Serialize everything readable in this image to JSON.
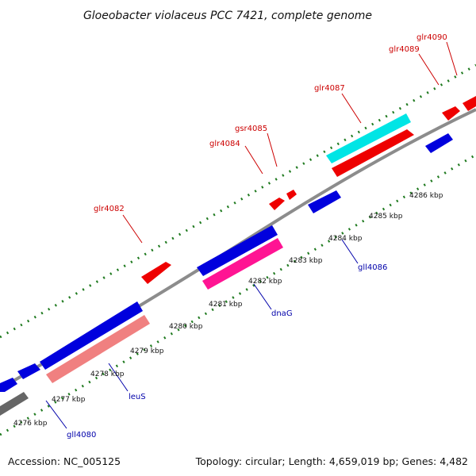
{
  "title": "Gloeobacter violaceus PCC 7421, complete genome",
  "footer": {
    "accession": "Accession: NC_005125",
    "summary": "Topology: circular; Length: 4,659,019 bp; Genes: 4,482"
  },
  "colors": {
    "backbone": "#8c8c8c",
    "tick": "#1f7a1f",
    "label_forward": "#cc0000",
    "label_reverse": "#0000aa"
  },
  "scale_ticks": [
    "4276 kbp",
    "4277 kbp",
    "4278 kbp",
    "4279 kbp",
    "4280 kbp",
    "4281 kbp",
    "4282 kbp",
    "4283 kbp",
    "4284 kbp",
    "4285 kbp",
    "4286 kbp"
  ],
  "genes": [
    {
      "label": "glr4082",
      "color": "#ee0000"
    },
    {
      "label": "glr4084",
      "color": "#ee0000"
    },
    {
      "label": "gsr4085",
      "color": "#ee0000"
    },
    {
      "label": "glr4087",
      "color": "#ee0000"
    },
    {
      "label": "glr4089",
      "color": "#ee0000"
    },
    {
      "label": "glr4090",
      "color": "#ee0000"
    },
    {
      "label": "gll4080",
      "color": "#0000dd"
    },
    {
      "label": "leuS",
      "color": "#f08080"
    },
    {
      "label": "dnaG",
      "color": "#ff1493"
    },
    {
      "label": "gll4086",
      "color": "#0000dd"
    }
  ]
}
